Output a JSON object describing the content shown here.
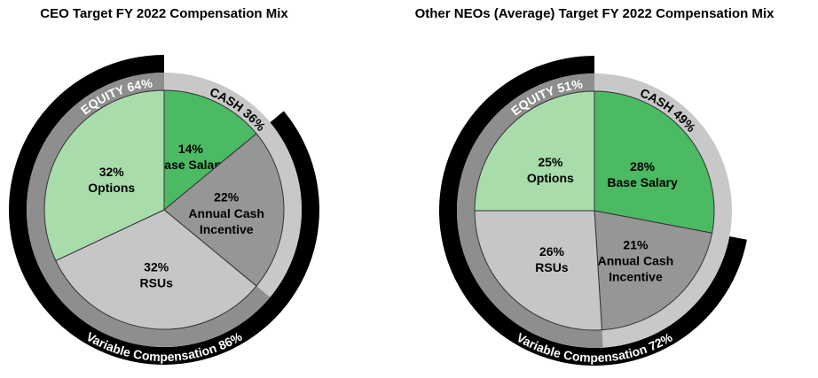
{
  "chart_data": [
    {
      "type": "pie",
      "title": "CEO Target FY 2022 Compensation Mix",
      "categories": [
        "Base Salary",
        "Annual Cash Incentive",
        "RSUs",
        "Options"
      ],
      "values": [
        14,
        22,
        32,
        32
      ],
      "value_labels": [
        "14%",
        "22%",
        "32%",
        "32%"
      ],
      "colors": [
        "#4cb963",
        "#969696",
        "#c6c6c8",
        "#a8dcaa"
      ],
      "inner_ring": [
        {
          "label": "CASH 36%",
          "value": 36,
          "color": "#c8c8c8"
        },
        {
          "label": "EQUITY 64%",
          "value": 64,
          "color": "#8e8e8e"
        }
      ],
      "outer_ring": {
        "label": "Variable Compensation 86%",
        "value": 86,
        "color": "#000000"
      }
    },
    {
      "type": "pie",
      "title": "Other NEOs (Average) Target FY 2022 Compensation Mix",
      "categories": [
        "Base Salary",
        "Annual Cash Incentive",
        "RSUs",
        "Options"
      ],
      "values": [
        28,
        21,
        26,
        25
      ],
      "value_labels": [
        "28%",
        "21%",
        "26%",
        "25%"
      ],
      "colors": [
        "#4cb963",
        "#969696",
        "#c6c6c8",
        "#a8dcaa"
      ],
      "inner_ring": [
        {
          "label": "CASH 49%",
          "value": 49,
          "color": "#c8c8c8"
        },
        {
          "label": "EQUITY 51%",
          "value": 51,
          "color": "#8e8e8e"
        }
      ],
      "outer_ring": {
        "label": "Variable Compensation 72%",
        "value": 72,
        "color": "#000000"
      }
    }
  ]
}
